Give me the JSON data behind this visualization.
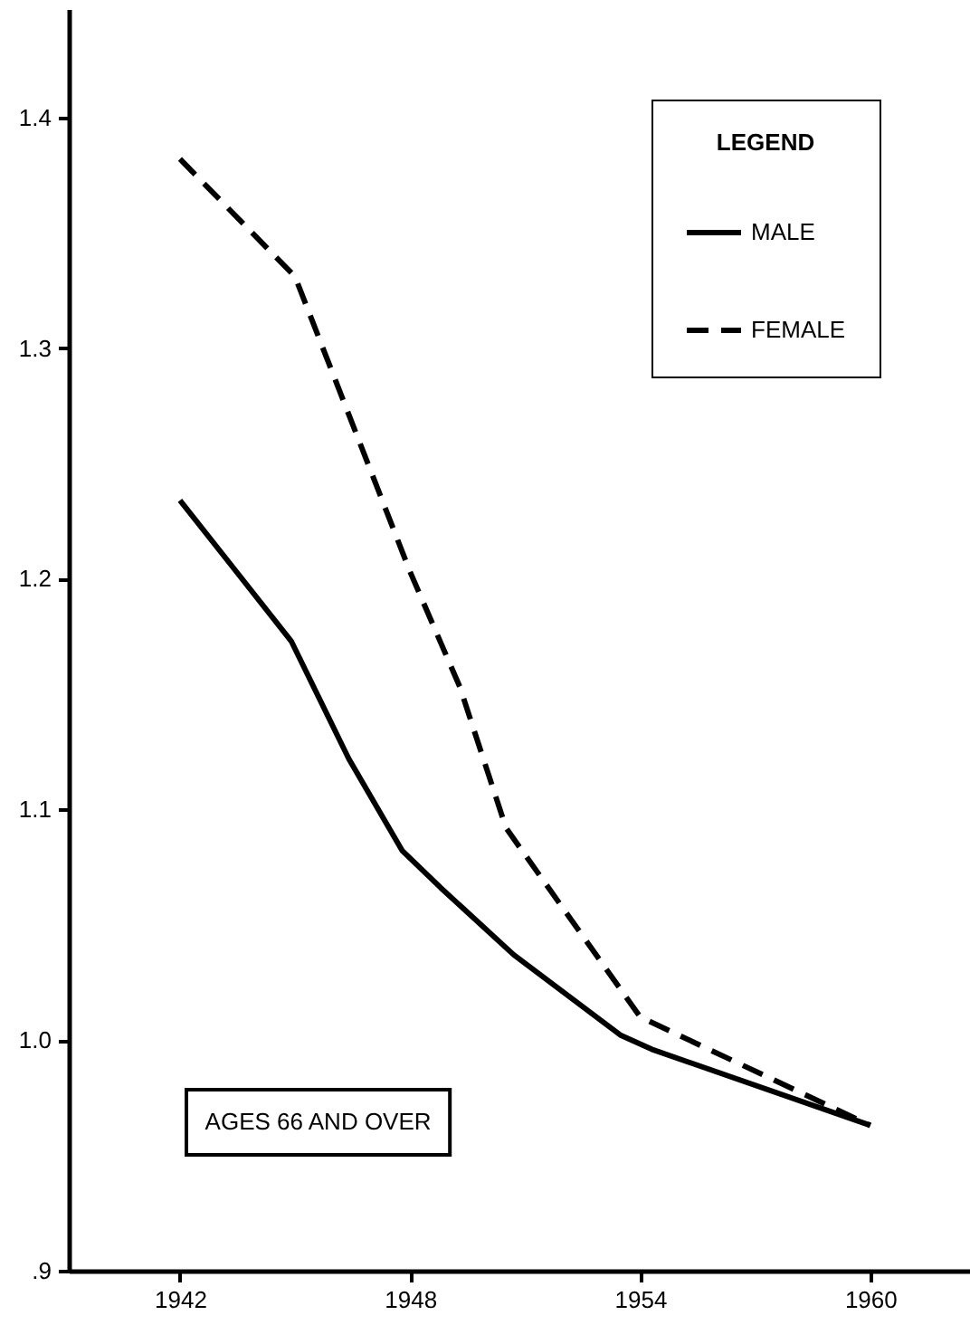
{
  "chart_data": {
    "type": "line",
    "legend_title": "LEGEND",
    "annotations": [
      "AGES 66 AND OVER"
    ],
    "xlim": [
      1939.1,
      1962.6
    ],
    "xticks": [
      1942,
      1948,
      1954,
      1960
    ],
    "ylim": [
      0.9,
      1.447
    ],
    "yticks": [
      {
        "value": 0.9,
        "label": ".9"
      },
      {
        "value": 1.0,
        "label": "1.0"
      },
      1.1,
      1.2,
      1.3,
      1.4
    ],
    "grid": false,
    "legend": "top right",
    "marker": "none",
    "series": [
      {
        "name": "MALE",
        "color": "#000000",
        "line_style": "solid",
        "x": [
          1942,
          1944.9,
          1946.4,
          1947.8,
          1948.8,
          1950.7,
          1953.5,
          1954.3,
          1960
        ],
        "values": [
          1.234,
          1.173,
          1.122,
          1.082,
          1.066,
          1.037,
          1.002,
          0.996,
          0.963
        ]
      },
      {
        "name": "FEMALE",
        "color": "#000000",
        "line_style": "dashed",
        "x": [
          1942,
          1945,
          1948,
          1949.3,
          1950.5,
          1954,
          1960
        ],
        "values": [
          1.382,
          1.331,
          1.203,
          1.153,
          1.092,
          1.01,
          0.963
        ]
      }
    ]
  }
}
